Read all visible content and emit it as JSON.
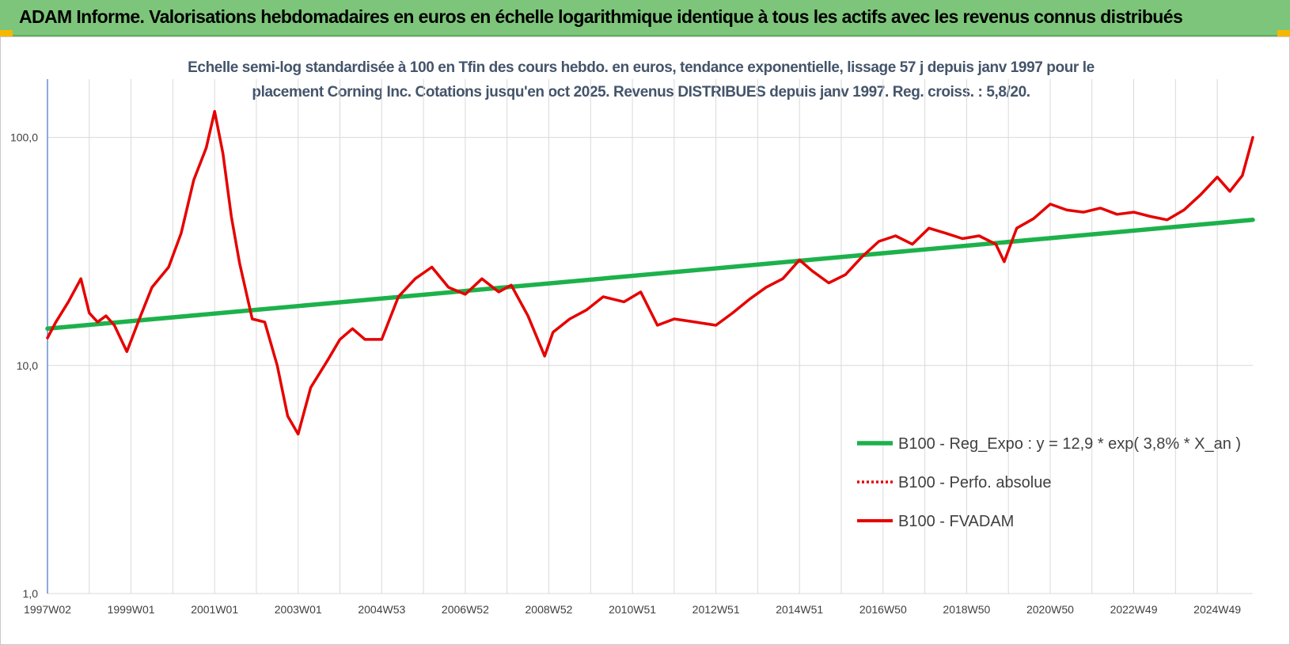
{
  "header": {
    "title": "ADAM Informe. Valorisations hebdomadaires en euros en échelle logarithmique identique à tous les actifs avec les revenus connus distribués"
  },
  "colors": {
    "header_bg": "#7dc57a",
    "corner_accent": "#f5b800",
    "regression_line": "#1db14b",
    "fvadam_line": "#e60000",
    "perfo_line": "#e60000",
    "grid": "#d9d9d9",
    "axis_text": "#404040",
    "subtitle_text": "#44546a"
  },
  "chart_data": {
    "type": "line",
    "title": "Echelle semi-log standardisée à 100 en Tfin des cours hebdo. en euros, tendance exponentielle, lissage 57 j depuis janv 1997 pour le placement Corning Inc. Cotations jusqu'en oct 2025. Revenus DISTRIBUES depuis janv 1997. Reg. croiss. : 5,8/20.",
    "title_lines": [
      "Echelle semi-log standardisée à 100 en Tfin des cours hebdo. en euros, tendance exponentielle, lissage 57 j depuis janv 1997 pour le",
      "placement Corning Inc. Cotations jusqu'en oct 2025. Revenus DISTRIBUES depuis janv 1997. Reg. croiss. : 5,8/20."
    ],
    "y_scale": "log",
    "ylim": [
      1,
      180
    ],
    "y_ticks": [
      {
        "value": 1,
        "label": "1,0"
      },
      {
        "value": 10,
        "label": "10,0"
      },
      {
        "value": 100,
        "label": "100,0"
      }
    ],
    "xlim": [
      1997.0,
      2025.85
    ],
    "x_ticks": [
      {
        "x": 1997.0,
        "label": "1997W02"
      },
      {
        "x": 1999.0,
        "label": "1999W01"
      },
      {
        "x": 2001.0,
        "label": "2001W01"
      },
      {
        "x": 2003.0,
        "label": "2003W01"
      },
      {
        "x": 2005.0,
        "label": "2004W53"
      },
      {
        "x": 2007.0,
        "label": "2006W52"
      },
      {
        "x": 2009.0,
        "label": "2008W52"
      },
      {
        "x": 2011.0,
        "label": "2010W51"
      },
      {
        "x": 2013.0,
        "label": "2012W51"
      },
      {
        "x": 2015.0,
        "label": "2014W51"
      },
      {
        "x": 2017.0,
        "label": "2016W50"
      },
      {
        "x": 2019.0,
        "label": "2018W50"
      },
      {
        "x": 2021.0,
        "label": "2020W50"
      },
      {
        "x": 2023.0,
        "label": "2022W49"
      },
      {
        "x": 2025.0,
        "label": "2024W49"
      }
    ],
    "grid": true,
    "legend_position": "lower-right",
    "series": [
      {
        "name": "B100 - Reg_Expo : y = 12,9 * exp( 3,8% *  X_an )",
        "style": "solid-thick",
        "color": "#1db14b",
        "x": [
          1997.0,
          2025.85
        ],
        "y": [
          14.5,
          43.5
        ]
      },
      {
        "name": "B100 - Perfo. absolue",
        "style": "dotted",
        "color": "#e60000",
        "x": [],
        "y": []
      },
      {
        "name": "B100 - FVADAM",
        "style": "solid",
        "color": "#e60000",
        "x": [
          1997.0,
          1997.2,
          1997.5,
          1997.8,
          1998.0,
          1998.2,
          1998.4,
          1998.6,
          1998.9,
          1999.2,
          1999.5,
          1999.9,
          2000.2,
          2000.5,
          2000.8,
          2001.0,
          2001.2,
          2001.4,
          2001.6,
          2001.9,
          2002.2,
          2002.5,
          2002.75,
          2003.0,
          2003.3,
          2003.7,
          2004.0,
          2004.3,
          2004.6,
          2005.0,
          2005.4,
          2005.8,
          2006.2,
          2006.6,
          2007.0,
          2007.4,
          2007.8,
          2008.1,
          2008.5,
          2008.9,
          2009.1,
          2009.5,
          2009.9,
          2010.3,
          2010.8,
          2011.2,
          2011.6,
          2012.0,
          2012.5,
          2013.0,
          2013.4,
          2013.8,
          2014.2,
          2014.6,
          2015.0,
          2015.3,
          2015.7,
          2016.1,
          2016.5,
          2016.9,
          2017.3,
          2017.7,
          2018.1,
          2018.5,
          2018.9,
          2019.3,
          2019.7,
          2019.9,
          2020.2,
          2020.6,
          2021.0,
          2021.4,
          2021.8,
          2022.2,
          2022.6,
          2023.0,
          2023.4,
          2023.8,
          2024.2,
          2024.6,
          2025.0,
          2025.3,
          2025.6,
          2025.85
        ],
        "y": [
          13.2,
          15.5,
          19.0,
          24.0,
          17.0,
          15.5,
          16.5,
          15.0,
          11.5,
          16.0,
          22.0,
          27.0,
          38.0,
          65.0,
          90.0,
          130.0,
          85.0,
          45.0,
          28.0,
          16.0,
          15.5,
          10.0,
          6.0,
          5.0,
          8.0,
          10.5,
          13.0,
          14.5,
          13.0,
          13.0,
          20.0,
          24.0,
          27.0,
          22.0,
          20.5,
          24.0,
          21.0,
          22.5,
          16.5,
          11.0,
          14.0,
          16.0,
          17.5,
          20.0,
          19.0,
          21.0,
          15.0,
          16.0,
          15.5,
          15.0,
          17.0,
          19.5,
          22.0,
          24.0,
          29.0,
          26.0,
          23.0,
          25.0,
          30.0,
          35.0,
          37.0,
          34.0,
          40.0,
          38.0,
          36.0,
          37.0,
          34.0,
          28.5,
          40.0,
          44.0,
          51.0,
          48.0,
          47.0,
          49.0,
          46.0,
          47.0,
          45.0,
          43.5,
          48.0,
          56.0,
          67.0,
          58.0,
          68.0,
          100.0
        ]
      }
    ]
  }
}
